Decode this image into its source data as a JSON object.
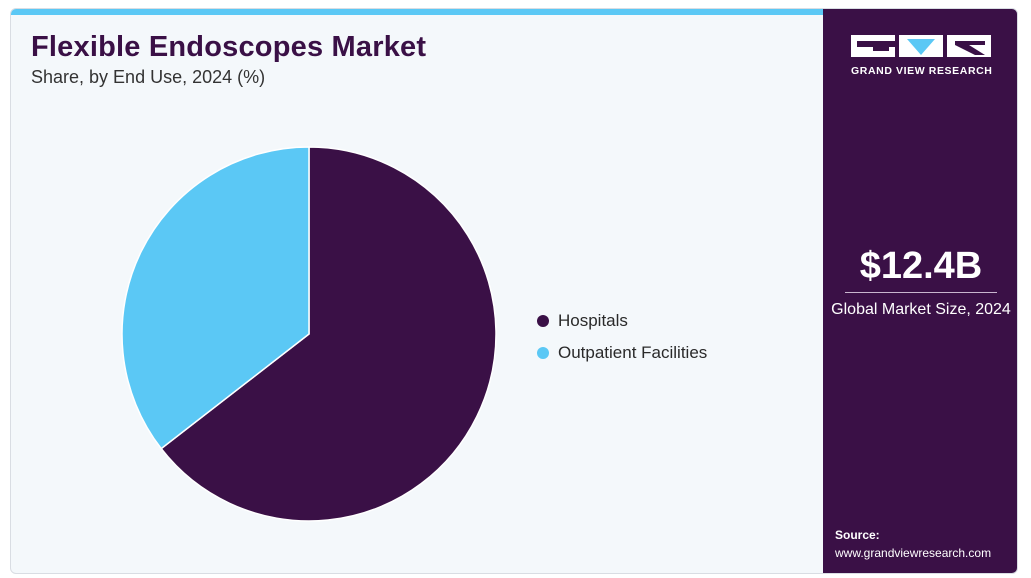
{
  "header": {
    "title": "Flexible Endoscopes Market",
    "subtitle": "Share, by End Use, 2024 (%)"
  },
  "chart_data": {
    "type": "pie",
    "title": "Flexible Endoscopes Market",
    "subtitle": "Share, by End Use, 2024 (%)",
    "categories": [
      "Hospitals",
      "Outpatient Facilities"
    ],
    "values": [
      64.5,
      35.5
    ],
    "colors": [
      "#3a1046",
      "#5bc8f5"
    ],
    "legend": [
      "Hospitals",
      "Outpatient Facilities"
    ],
    "legend_position": "right",
    "start_angle": "12 o'clock, clockwise"
  },
  "sidebar": {
    "brand_name": "GRAND VIEW RESEARCH",
    "market_size_value": "$12.4B",
    "market_size_label": "Global Market Size, 2024",
    "source_label": "Source:",
    "source_url": "www.grandviewresearch.com"
  },
  "colors": {
    "accent_dark": "#3a1046",
    "accent_light": "#5bc8f5",
    "background": "#f4f8fb"
  }
}
